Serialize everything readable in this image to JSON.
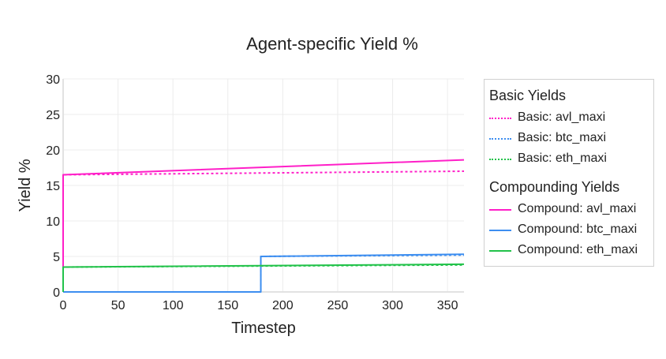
{
  "chart_data": {
    "type": "line",
    "title": "Agent-specific Yield %",
    "xlabel": "Timestep",
    "ylabel": "Yield %",
    "xlim": [
      0,
      365
    ],
    "ylim": [
      0,
      30
    ],
    "x_ticks": [
      0,
      50,
      100,
      150,
      200,
      250,
      300,
      350
    ],
    "y_ticks": [
      0,
      5,
      10,
      15,
      20,
      25,
      30
    ],
    "grid": true,
    "legend_position": "right",
    "legend_groups": [
      {
        "title": "Basic Yields",
        "series": [
          0,
          1,
          2
        ]
      },
      {
        "title": "Compounding Yields",
        "series": [
          3,
          4,
          5
        ]
      }
    ],
    "series": [
      {
        "name": "Basic: avl_maxi",
        "color": "#ff1fc8",
        "dash": "dot",
        "points": [
          [
            0,
            0
          ],
          [
            0,
            16.5
          ],
          [
            365,
            17.0
          ]
        ]
      },
      {
        "name": "Basic: btc_maxi",
        "color": "#3d8ef0",
        "dash": "dot",
        "points": [
          [
            0,
            0
          ],
          [
            180,
            0
          ],
          [
            180,
            5.0
          ],
          [
            365,
            5.2
          ]
        ]
      },
      {
        "name": "Basic: eth_maxi",
        "color": "#22c24a",
        "dash": "dot",
        "points": [
          [
            0,
            0
          ],
          [
            0,
            3.5
          ],
          [
            365,
            3.8
          ]
        ]
      },
      {
        "name": "Compound: avl_maxi",
        "color": "#ff1fc8",
        "dash": "solid",
        "points": [
          [
            0,
            0
          ],
          [
            0,
            16.5
          ],
          [
            365,
            18.6
          ]
        ]
      },
      {
        "name": "Compound: btc_maxi",
        "color": "#3d8ef0",
        "dash": "solid",
        "points": [
          [
            0,
            0
          ],
          [
            180,
            0
          ],
          [
            180,
            5.0
          ],
          [
            365,
            5.3
          ]
        ]
      },
      {
        "name": "Compound: eth_maxi",
        "color": "#22c24a",
        "dash": "solid",
        "points": [
          [
            0,
            0
          ],
          [
            0,
            3.5
          ],
          [
            365,
            3.9
          ]
        ]
      }
    ]
  }
}
